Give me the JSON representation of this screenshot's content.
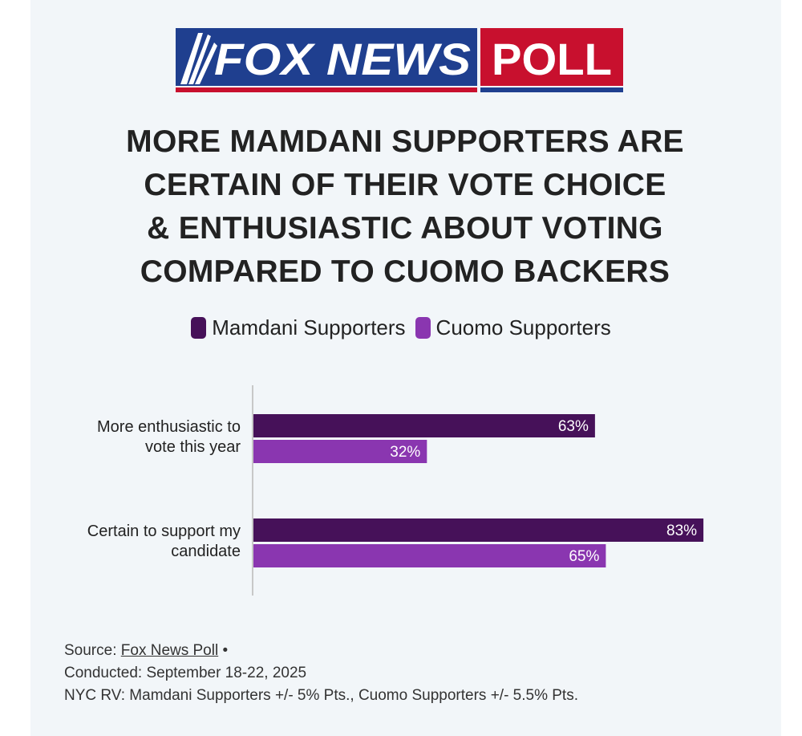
{
  "logo": {
    "fox_news_text": "FOX NEWS",
    "poll_text": "POLL",
    "blue": "#1f3f8f",
    "red": "#c8102e"
  },
  "title_lines": [
    "MORE MAMDANI SUPPORTERS ARE",
    "CERTAIN OF THEIR VOTE CHOICE",
    "& ENTHUSIASTIC ABOUT VOTING",
    "COMPARED TO CUOMO BACKERS"
  ],
  "legend": [
    {
      "label": "Mamdani Supporters",
      "color": "#461159"
    },
    {
      "label": "Cuomo Supporters",
      "color": "#8a36b0"
    }
  ],
  "chart_data": {
    "type": "bar",
    "orientation": "horizontal",
    "title": "MORE MAMDANI SUPPORTERS ARE CERTAIN OF THEIR VOTE CHOICE & ENTHUSIASTIC ABOUT VOTING COMPARED TO CUOMO BACKERS",
    "categories": [
      [
        "More enthusiastic to",
        "vote this year"
      ],
      [
        "Certain to support my",
        "candidate"
      ]
    ],
    "series": [
      {
        "name": "Mamdani Supporters",
        "values": [
          63,
          83
        ],
        "labels": [
          "63%",
          "83%"
        ],
        "color": "#461159"
      },
      {
        "name": "Cuomo Supporters",
        "values": [
          32,
          65
        ],
        "labels": [
          "32%",
          "65%"
        ],
        "color": "#8a36b0"
      }
    ],
    "xlim": [
      0,
      100
    ],
    "grid": false,
    "legend_position": "top"
  },
  "footer": {
    "source_prefix": "Source: ",
    "source_link": "Fox News Poll",
    "source_suffix": " •",
    "conducted": "Conducted: September 18-22, 2025",
    "margin_note": "NYC RV: Mamdani Supporters +/- 5% Pts., Cuomo Supporters +/- 5.5% Pts."
  }
}
